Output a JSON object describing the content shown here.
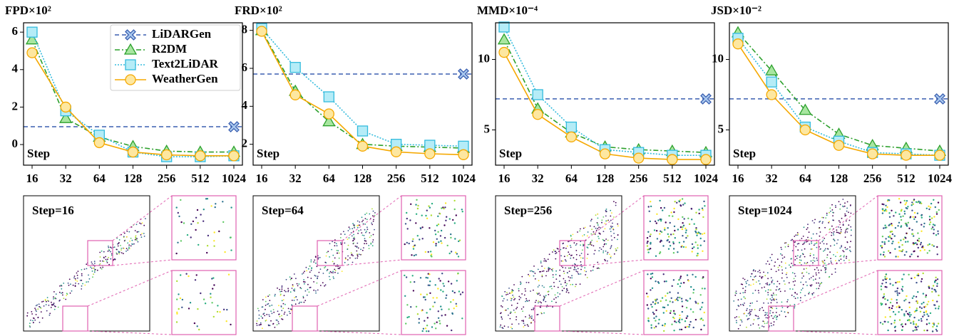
{
  "chart_data": [
    {
      "type": "line",
      "title": "FPD×10²",
      "annotation": "Step",
      "categories": [
        "16",
        "32",
        "64",
        "128",
        "256",
        "512",
        "1024"
      ],
      "ylim": [
        -1.1,
        6.5
      ],
      "yticks": [
        0,
        2,
        4,
        6
      ],
      "legend": "upper right",
      "series": [
        {
          "name": "LiDARGen",
          "color": "#3a5fb0",
          "fill": "#a9c8ee",
          "marker": "x",
          "dash": "dashed",
          "reference_line": true,
          "values": [
            null,
            null,
            null,
            null,
            null,
            null,
            0.95
          ]
        },
        {
          "name": "R2DM",
          "color": "#2ca02c",
          "fill": "#a8e6a0",
          "marker": "triangle",
          "dash": "dashdot",
          "values": [
            5.6,
            1.4,
            0.4,
            -0.1,
            -0.35,
            -0.4,
            -0.4
          ]
        },
        {
          "name": "Text2LiDAR",
          "color": "#33bbdd",
          "fill": "#b5ecf7",
          "marker": "square",
          "dash": "dotted",
          "values": [
            6.0,
            1.8,
            0.5,
            -0.4,
            -0.65,
            -0.65,
            -0.6
          ]
        },
        {
          "name": "WeatherGen",
          "color": "#f5a800",
          "fill": "#fde7a0",
          "marker": "circle",
          "dash": "solid",
          "values": [
            4.9,
            2.0,
            0.1,
            -0.4,
            -0.55,
            -0.6,
            -0.6
          ]
        }
      ]
    },
    {
      "type": "line",
      "title": "FRD×10²",
      "annotation": "Step",
      "categories": [
        "16",
        "32",
        "64",
        "128",
        "256",
        "512",
        "1024"
      ],
      "ylim": [
        0.9,
        8.4
      ],
      "yticks": [
        2,
        4,
        6,
        8
      ],
      "series": [
        {
          "name": "LiDARGen",
          "color": "#3a5fb0",
          "fill": "#a9c8ee",
          "marker": "x",
          "dash": "dashed",
          "reference_line": true,
          "values": [
            null,
            null,
            null,
            null,
            null,
            null,
            5.7
          ]
        },
        {
          "name": "R2DM",
          "color": "#2ca02c",
          "fill": "#a8e6a0",
          "marker": "triangle",
          "dash": "dashdot",
          "values": [
            8.0,
            4.8,
            3.2,
            2.0,
            1.9,
            1.85,
            1.8
          ]
        },
        {
          "name": "Text2LiDAR",
          "color": "#33bbdd",
          "fill": "#b5ecf7",
          "marker": "square",
          "dash": "dotted",
          "values": [
            8.1,
            6.05,
            4.5,
            2.7,
            2.0,
            1.95,
            1.9
          ]
        },
        {
          "name": "WeatherGen",
          "color": "#f5a800",
          "fill": "#fde7a0",
          "marker": "circle",
          "dash": "solid",
          "values": [
            7.95,
            4.6,
            3.6,
            1.9,
            1.6,
            1.5,
            1.45
          ]
        }
      ]
    },
    {
      "type": "line",
      "title": "MMD×10⁻⁴",
      "annotation": "Step",
      "categories": [
        "16",
        "32",
        "64",
        "128",
        "256",
        "512",
        "1024"
      ],
      "ylim": [
        2.5,
        12.6
      ],
      "yticks": [
        5,
        10
      ],
      "series": [
        {
          "name": "LiDARGen",
          "color": "#3a5fb0",
          "fill": "#a9c8ee",
          "marker": "x",
          "dash": "dashed",
          "reference_line": true,
          "values": [
            null,
            null,
            null,
            null,
            null,
            null,
            7.2
          ]
        },
        {
          "name": "R2DM",
          "color": "#2ca02c",
          "fill": "#a8e6a0",
          "marker": "triangle",
          "dash": "dashdot",
          "values": [
            11.4,
            6.5,
            4.8,
            3.8,
            3.6,
            3.5,
            3.4
          ]
        },
        {
          "name": "Text2LiDAR",
          "color": "#33bbdd",
          "fill": "#b5ecf7",
          "marker": "square",
          "dash": "dotted",
          "values": [
            12.3,
            7.5,
            5.2,
            3.6,
            3.4,
            3.2,
            3.2
          ]
        },
        {
          "name": "WeatherGen",
          "color": "#f5a800",
          "fill": "#fde7a0",
          "marker": "circle",
          "dash": "solid",
          "values": [
            10.5,
            6.1,
            4.5,
            3.3,
            3.0,
            2.9,
            2.9
          ]
        }
      ]
    },
    {
      "type": "line",
      "title": "JSD×10⁻²",
      "annotation": "Step",
      "categories": [
        "16",
        "32",
        "64",
        "128",
        "256",
        "512",
        "1024"
      ],
      "ylim": [
        2.5,
        12.6
      ],
      "yticks": [
        5,
        10
      ],
      "series": [
        {
          "name": "LiDARGen",
          "color": "#3a5fb0",
          "fill": "#a9c8ee",
          "marker": "x",
          "dash": "dashed",
          "reference_line": true,
          "values": [
            null,
            null,
            null,
            null,
            null,
            null,
            7.2
          ]
        },
        {
          "name": "R2DM",
          "color": "#2ca02c",
          "fill": "#a8e6a0",
          "marker": "triangle",
          "dash": "dashdot",
          "values": [
            11.9,
            9.2,
            6.4,
            4.7,
            3.9,
            3.7,
            3.5
          ]
        },
        {
          "name": "Text2LiDAR",
          "color": "#33bbdd",
          "fill": "#b5ecf7",
          "marker": "square",
          "dash": "dotted",
          "values": [
            11.5,
            8.4,
            5.2,
            4.2,
            3.4,
            3.3,
            3.2
          ]
        },
        {
          "name": "WeatherGen",
          "color": "#f5a800",
          "fill": "#fde7a0",
          "marker": "circle",
          "dash": "solid",
          "values": [
            11.1,
            7.5,
            5.0,
            3.9,
            3.3,
            3.2,
            3.2
          ]
        }
      ]
    }
  ],
  "image_panels": [
    {
      "label": "Step=16"
    },
    {
      "label": "Step=64"
    },
    {
      "label": "Step=256"
    },
    {
      "label": "Step=1024"
    }
  ]
}
